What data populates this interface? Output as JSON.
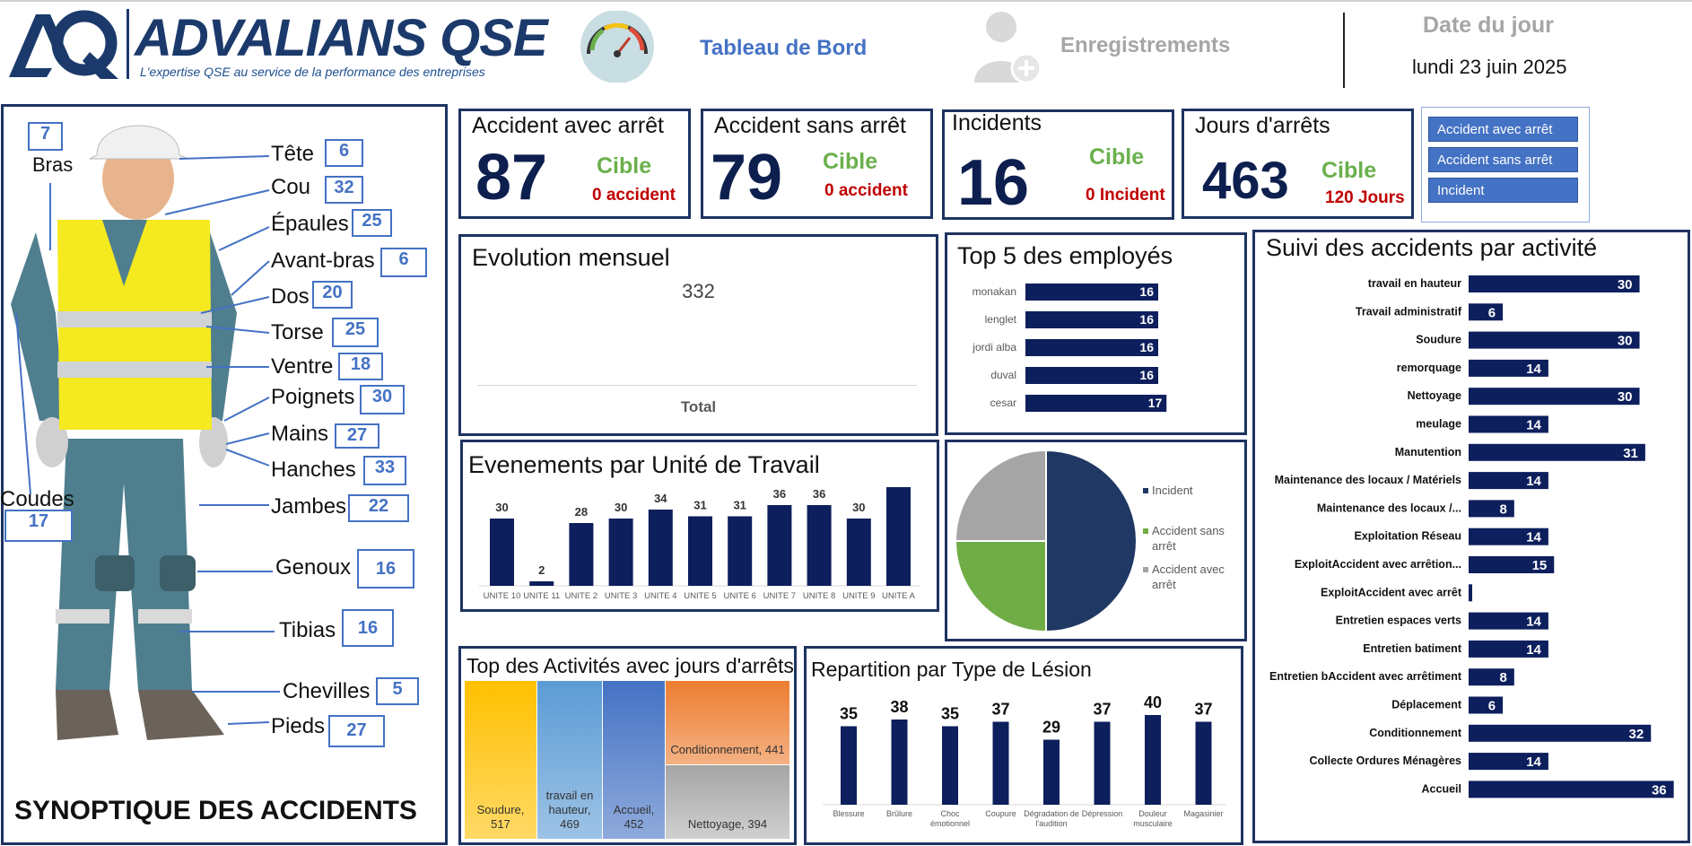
{
  "header": {
    "brand": "ADVALIANS QSE",
    "tagline": "L'expertise QSE au service de la performance des entreprises",
    "nav_dashboard": "Tableau de Bord",
    "nav_records": "Enregistrements",
    "date_label": "Date du jour",
    "date_value": "lundi 23 juin 2025"
  },
  "kpis": [
    {
      "title": "Accident avec arrêt",
      "value": "87",
      "cible": "Cible",
      "target": "0 accident"
    },
    {
      "title": "Accident sans arrêt",
      "value": "79",
      "cible": "Cible",
      "target": "0 accident"
    },
    {
      "title": "Incidents",
      "value": "16",
      "cible": "Cible",
      "target": "0 Incident"
    },
    {
      "title": "Jours d'arrêts",
      "value": "463",
      "cible": "Cible",
      "target": "120 Jours"
    }
  ],
  "slicer": [
    "Accident avec arrêt",
    "Accident sans arrêt",
    "Incident"
  ],
  "body": {
    "title": "SYNOPTIQUE DES ACCIDENTS",
    "parts": [
      {
        "label": "Bras",
        "value": "7"
      },
      {
        "label": "Tête",
        "value": "6"
      },
      {
        "label": "Cou",
        "value": "32"
      },
      {
        "label": "Épaules",
        "value": "25"
      },
      {
        "label": "Avant-bras",
        "value": "6"
      },
      {
        "label": "Dos",
        "value": "20"
      },
      {
        "label": "Torse",
        "value": "25"
      },
      {
        "label": "Ventre",
        "value": "18"
      },
      {
        "label": "Poignets",
        "value": "30"
      },
      {
        "label": "Mains",
        "value": "27"
      },
      {
        "label": "Hanches",
        "value": "33"
      },
      {
        "label": "Coudes",
        "value": "17"
      },
      {
        "label": "Jambes",
        "value": "22"
      },
      {
        "label": "Genoux",
        "value": "16"
      },
      {
        "label": "Tibias",
        "value": "16"
      },
      {
        "label": "Chevilles",
        "value": "5"
      },
      {
        "label": "Pieds",
        "value": "27"
      }
    ]
  },
  "evolution": {
    "title": "Evolution mensuel",
    "value": "332",
    "footer": "Total"
  },
  "chart_data": [
    {
      "type": "bar",
      "orientation": "horizontal",
      "title": "Top 5 des employés",
      "categories": [
        "monakan",
        "lenglet",
        "jordi alba",
        "duval",
        "cesar"
      ],
      "values": [
        16,
        16,
        16,
        16,
        17
      ],
      "color": "#0d1f5c"
    },
    {
      "type": "bar",
      "orientation": "horizontal",
      "title": "Suivi des accidents par activité",
      "categories": [
        "travail en hauteur",
        "Travail administratif",
        "Soudure",
        "remorquage",
        "Nettoyage",
        "meulage",
        "Manutention",
        "Maintenance des locaux / Matériels",
        "Maintenance des locaux /...",
        "Exploitation Réseau",
        "ExploitAccident avec arrêtion...",
        "ExploitAccident avec arrêt",
        "Entretien espaces verts",
        "Entretien batiment",
        "Entretien bAccident avec arrêtiment",
        "Déplacement",
        "Conditionnement",
        "Collecte Ordures Ménagères",
        "Accueil"
      ],
      "values": [
        30,
        6,
        30,
        14,
        30,
        14,
        31,
        14,
        8,
        14,
        15,
        0,
        14,
        14,
        8,
        6,
        32,
        14,
        36
      ],
      "color": "#0d1f5c"
    },
    {
      "type": "bar",
      "title": "Evenements par Unité de Travail",
      "categories": [
        "UNITE 10",
        "UNITE 11",
        "UNITE 2",
        "UNITE 3",
        "UNITE 4",
        "UNITE 5",
        "UNITE 6",
        "UNITE 7",
        "UNITE 8",
        "UNITE 9",
        "UNITE A"
      ],
      "values": [
        30,
        2,
        28,
        30,
        34,
        31,
        31,
        36,
        36,
        30,
        44
      ],
      "color": "#0d1f5c"
    },
    {
      "type": "pie",
      "categories": [
        "Incident",
        "Accident sans arrêt",
        "Accident avec arrêt"
      ],
      "values": [
        50,
        25,
        25
      ],
      "colors": [
        "#1f3864",
        "#70ad47",
        "#a5a5a5"
      ],
      "legend": "right"
    },
    {
      "type": "heatmap",
      "subtype": "treemap",
      "title": "Top des Activités avec jours d'arrêts",
      "categories": [
        "Soudure",
        "travail en hauteur",
        "Accueil",
        "Conditionnement",
        "Nettoyage"
      ],
      "values": [
        517,
        469,
        452,
        441,
        394
      ],
      "colors": [
        "#ffc000",
        "#5b9bd5",
        "#4472c4",
        "#ed7d31",
        "#a5a5a5"
      ]
    },
    {
      "type": "bar",
      "title": "Repartition par Type de Lésion",
      "categories": [
        "Blessure",
        "Brûlure",
        "Choc émotionnel",
        "Coupure",
        "Dégradation de l'audition",
        "Dépression",
        "Douleur musculaire",
        "Magasinier"
      ],
      "values": [
        35,
        38,
        35,
        37,
        29,
        37,
        40,
        37
      ],
      "color": "#0d1f5c"
    }
  ]
}
